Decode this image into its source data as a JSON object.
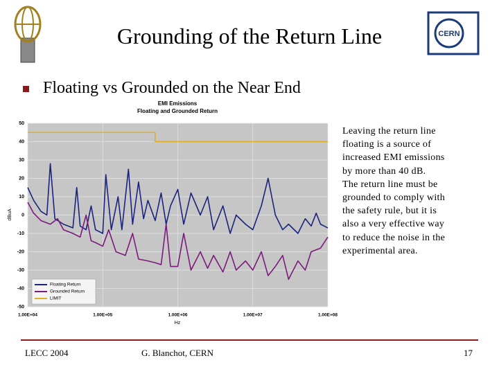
{
  "header": {
    "title": "Grounding of the Return Line",
    "logo_text": "CERN"
  },
  "bullet": "Floating vs Grounded on the Near End",
  "notes": [
    "Leaving the return line floating is a source of increased EMI emissions by more than 40 dB.",
    "The return line must be grounded to comply with the safety rule, but it is also a very effective way to reduce the noise in the experimental area."
  ],
  "footer": {
    "left": "LECC 2004",
    "center": "G. Blanchot, CERN",
    "right": "17"
  },
  "chart_data": {
    "type": "line",
    "title": "EMI Emissions",
    "subtitle": "Floating and Grounded Return",
    "x_label": "Hz",
    "y_label": "dBuA",
    "xscale": "log",
    "grid": true,
    "legend": "bottom-left",
    "xlim": [
      10000,
      100000000
    ],
    "xticks": [
      {
        "value": 10000,
        "label": "1.00E+04"
      },
      {
        "value": 100000,
        "label": "1.00E+05"
      },
      {
        "value": 1000000,
        "label": "1.00E+06"
      },
      {
        "value": 10000000,
        "label": "1.00E+07"
      },
      {
        "value": 100000000,
        "label": "1.00E+08"
      }
    ],
    "ylim": [
      -50,
      50
    ],
    "yticks": [
      -50,
      -40,
      -30,
      -20,
      -10,
      0,
      10,
      20,
      30,
      40,
      50
    ],
    "series": [
      {
        "name": "Floating Return",
        "color": "#1a237e",
        "x": [
          10000,
          12000,
          15000,
          18000,
          20000,
          23000,
          30000,
          40000,
          45000,
          50000,
          60000,
          70000,
          80000,
          100000,
          110000,
          130000,
          160000,
          180000,
          220000,
          250000,
          300000,
          350000,
          400000,
          500000,
          600000,
          700000,
          800000,
          1000000,
          1200000,
          1500000,
          2000000,
          2500000,
          3000000,
          4000000,
          5000000,
          6000000,
          8000000,
          10000000,
          13000000,
          16000000,
          20000000,
          25000000,
          30000000,
          40000000,
          50000000,
          60000000,
          70000000,
          80000000,
          100000000
        ],
        "values": [
          15,
          8,
          2,
          0,
          28,
          -2,
          -5,
          -7,
          15,
          -6,
          -8,
          5,
          -8,
          -10,
          22,
          -8,
          10,
          -8,
          25,
          -5,
          18,
          -2,
          8,
          -3,
          12,
          -5,
          5,
          14,
          -5,
          12,
          0,
          10,
          -8,
          5,
          -10,
          0,
          -5,
          -8,
          5,
          20,
          0,
          -8,
          -5,
          -10,
          -2,
          -6,
          1,
          -5,
          -7
        ]
      },
      {
        "name": "Grounded Return",
        "color": "#7b1a7b",
        "x": [
          10000,
          12000,
          15000,
          20000,
          25000,
          30000,
          40000,
          50000,
          60000,
          70000,
          80000,
          100000,
          120000,
          150000,
          200000,
          250000,
          300000,
          400000,
          500000,
          600000,
          700000,
          800000,
          1000000,
          1200000,
          1500000,
          2000000,
          2500000,
          3000000,
          4000000,
          5000000,
          6000000,
          8000000,
          10000000,
          13000000,
          16000000,
          20000000,
          25000000,
          30000000,
          40000000,
          50000000,
          60000000,
          80000000,
          100000000
        ],
        "values": [
          7,
          1,
          -3,
          -5,
          -2,
          -8,
          -10,
          -12,
          0,
          -14,
          -15,
          -17,
          -8,
          -20,
          -22,
          -10,
          -24,
          -25,
          -26,
          -27,
          -5,
          -28,
          -28,
          -10,
          -30,
          -20,
          -29,
          -22,
          -31,
          -20,
          -30,
          -25,
          -30,
          -20,
          -33,
          -28,
          -22,
          -35,
          -25,
          -30,
          -20,
          -18,
          -12
        ]
      },
      {
        "name": "LIMIT",
        "color": "#e0b020",
        "x": [
          10000,
          500000,
          500000,
          100000000
        ],
        "values": [
          45,
          45,
          40,
          40
        ]
      }
    ]
  }
}
